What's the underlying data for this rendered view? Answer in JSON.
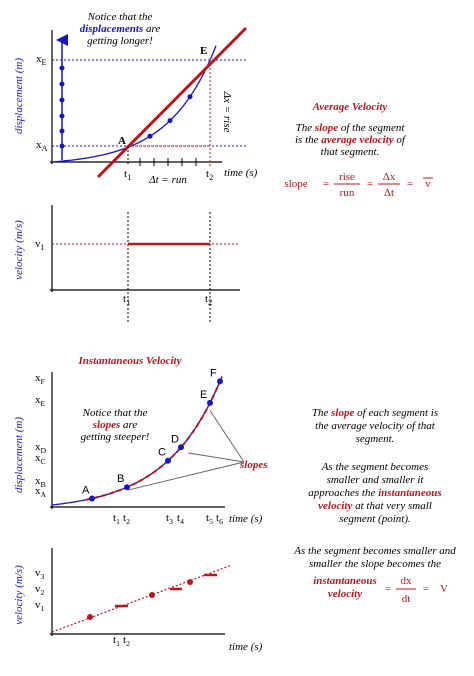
{
  "graph1": {
    "note": [
      [
        {
          "t": "Notice that the"
        }
      ],
      [
        {
          "t": "displacements",
          "em": true
        },
        {
          "t": " are"
        }
      ],
      [
        {
          "t": "getting longer!"
        }
      ]
    ],
    "y_label": "displacement (m)",
    "y_ticks": [
      {
        "base": "x",
        "sub": "E"
      },
      {
        "base": "x",
        "sub": "A"
      }
    ],
    "points": [
      "A",
      "E"
    ],
    "rise": "Δx = rise",
    "x_ticks": [
      {
        "base": "t",
        "sub": "1"
      },
      {
        "base": "t",
        "sub": "2"
      }
    ],
    "run": "Δt = run",
    "x_label": "time (s)"
  },
  "graph2": {
    "y_label": "velocity (m/s)",
    "y_tick": {
      "base": "v",
      "sub": "1"
    },
    "x_ticks": [
      {
        "base": "t",
        "sub": "1"
      },
      {
        "base": "t",
        "sub": "2"
      }
    ]
  },
  "average": {
    "title": "Average Velocity",
    "text": [
      [
        {
          "t": "The "
        },
        {
          "t": "slope",
          "em": true
        },
        {
          "t": " of the segment"
        }
      ],
      [
        {
          "t": "is the "
        },
        {
          "t": "average velocity",
          "em": true
        },
        {
          "t": " of"
        }
      ],
      [
        {
          "t": "that segment."
        }
      ]
    ],
    "formula": {
      "lhs": "slope",
      "eq": "=",
      "num1": "rise",
      "den1": "run",
      "num2": "Δx",
      "den2": "Δt",
      "rhs": "v"
    }
  },
  "instant_title": "Instantaneous Velocity",
  "graph3": {
    "y_label": "displacement (m)",
    "y_ticks": [
      {
        "base": "x",
        "sub": "F"
      },
      {
        "base": "x",
        "sub": "E"
      },
      {
        "base": "x",
        "sub": "D"
      },
      {
        "base": "x",
        "sub": "C"
      },
      {
        "base": "x",
        "sub": "B"
      },
      {
        "base": "x",
        "sub": "A"
      }
    ],
    "points": [
      "A",
      "B",
      "C",
      "D",
      "E",
      "F"
    ],
    "note": [
      [
        {
          "t": "Notice that the"
        }
      ],
      [
        {
          "t": "slopes",
          "em": true
        },
        {
          "t": " are"
        }
      ],
      [
        {
          "t": "getting steeper!"
        }
      ]
    ],
    "slopes": "slopes",
    "x_ticks": [
      {
        "base": "t",
        "sub": "1"
      },
      {
        "base": "t",
        "sub": "2"
      },
      {
        "base": "t",
        "sub": "3"
      },
      {
        "base": "t",
        "sub": "4"
      },
      {
        "base": "t",
        "sub": "5"
      },
      {
        "base": "t",
        "sub": "6"
      }
    ],
    "x_label": "time (s)"
  },
  "instant": {
    "text1": [
      [
        {
          "t": "The "
        },
        {
          "t": "slope",
          "em": true
        },
        {
          "t": " of each segment is"
        }
      ],
      [
        {
          "t": "the average velocity of that"
        }
      ],
      [
        {
          "t": "segment."
        }
      ]
    ],
    "text2": [
      [
        {
          "t": "As the segment becomes"
        }
      ],
      [
        {
          "t": "smaller and smaller it"
        }
      ],
      [
        {
          "t": "approaches the "
        },
        {
          "t": "instantaneous",
          "em": true
        }
      ],
      [
        {
          "t": "velocity",
          "em": true
        },
        {
          "t": " at that very small"
        }
      ],
      [
        {
          "t": "segment (point)."
        }
      ]
    ],
    "text3": [
      [
        {
          "t": "As the segment becomes smaller and"
        }
      ],
      [
        {
          "t": "smaller the slope becomes the"
        }
      ]
    ],
    "formula": {
      "label": [
        "instantaneous",
        "velocity"
      ],
      "eq": "=",
      "num": "dx",
      "den": "dt",
      "rhs": "V"
    }
  },
  "graph4": {
    "y_label": "velocity (m/s)",
    "y_ticks": [
      {
        "base": "v",
        "sub": "3"
      },
      {
        "base": "v",
        "sub": "2"
      },
      {
        "base": "v",
        "sub": "1"
      }
    ],
    "x_ticks": [
      {
        "base": "t",
        "sub": "1"
      },
      {
        "base": "t",
        "sub": "2"
      }
    ],
    "x_label": "time (s)"
  }
}
